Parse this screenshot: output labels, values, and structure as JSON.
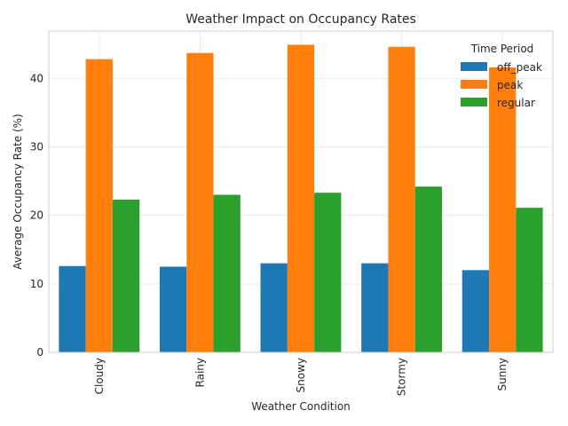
{
  "chart_data": {
    "type": "bar",
    "title": "Weather Impact on Occupancy Rates",
    "xlabel": "Weather Condition",
    "ylabel": "Average Occupancy Rate (%)",
    "categories": [
      "Cloudy",
      "Rainy",
      "Snowy",
      "Stormy",
      "Sunny"
    ],
    "series": [
      {
        "name": "off_peak",
        "color": "#1f77b4",
        "values": [
          12.6,
          12.5,
          13.0,
          13.0,
          12.0
        ]
      },
      {
        "name": "peak",
        "color": "#ff7f0e",
        "values": [
          42.8,
          43.7,
          44.9,
          44.6,
          41.6
        ]
      },
      {
        "name": "regular",
        "color": "#2ca02c",
        "values": [
          22.3,
          23.0,
          23.3,
          24.2,
          21.1
        ]
      }
    ],
    "ylim": [
      0,
      46.9
    ],
    "yticks": [
      0,
      10,
      20,
      30,
      40
    ],
    "grid": true,
    "legend": {
      "title": "Time Period",
      "placement": "top-right"
    }
  }
}
